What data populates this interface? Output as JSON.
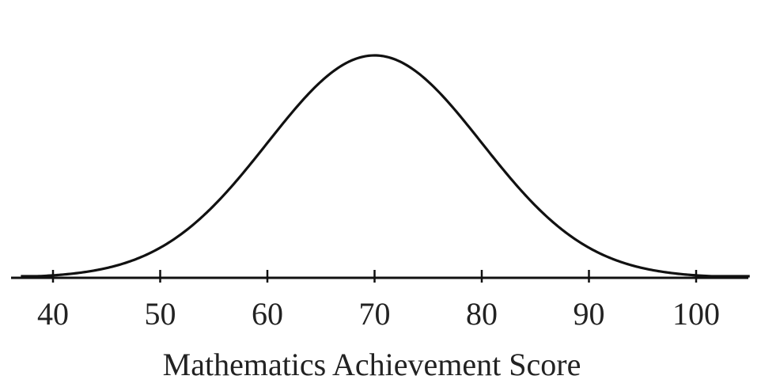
{
  "chart_data": {
    "type": "line",
    "title": "",
    "xlabel": "Mathematics Achievement Score",
    "ylabel": "",
    "xlim": [
      37,
      105
    ],
    "x_ticks": [
      40,
      50,
      60,
      70,
      80,
      90,
      100
    ],
    "x_tick_labels": [
      "40",
      "50",
      "60",
      "70",
      "80",
      "90",
      "100"
    ],
    "curve": {
      "shape": "normal",
      "mean": 70,
      "sd": 10
    },
    "grid": false,
    "legend": "none",
    "colors": {
      "curve": "#111111",
      "axis": "#111111",
      "text": "#222222"
    }
  }
}
